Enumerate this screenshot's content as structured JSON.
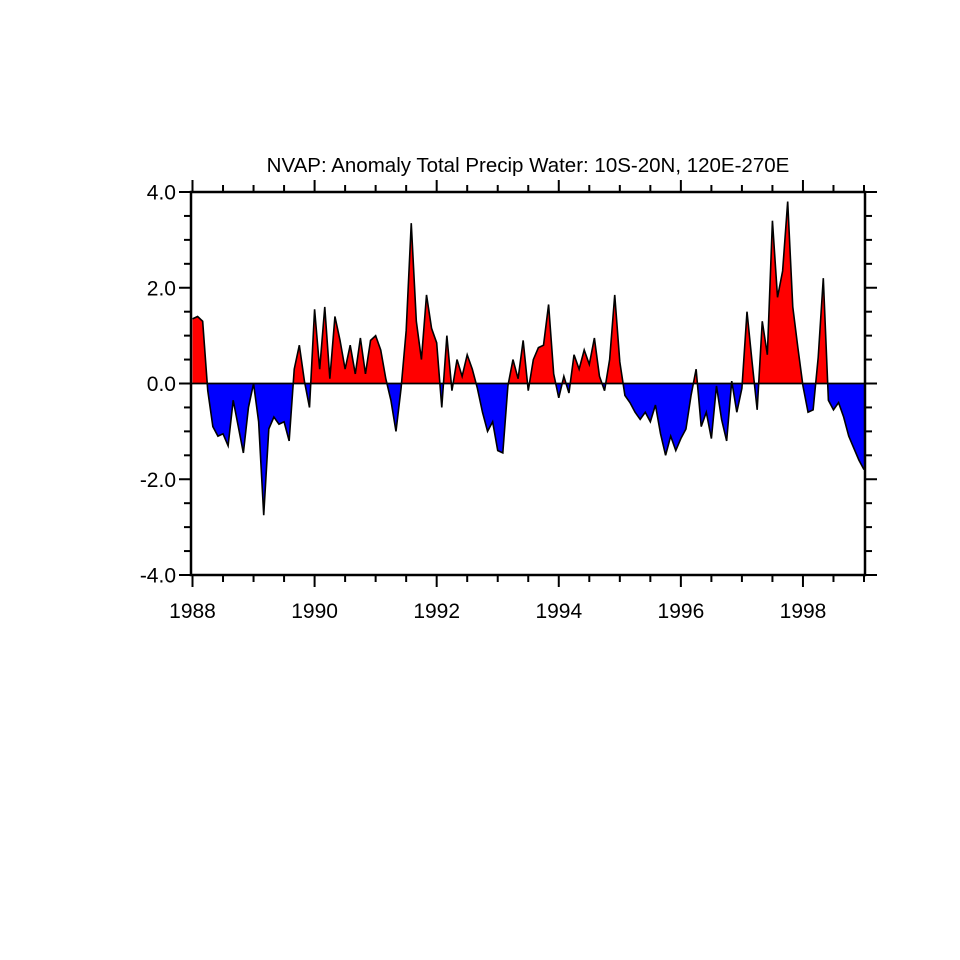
{
  "title": "NVAP: Anomaly Total Precip Water: 10S-20N, 120E-270E",
  "chart_data": {
    "type": "area",
    "title": "NVAP: Anomaly Total Precip Water: 10S-20N, 120E-270E",
    "xlabel": "",
    "ylabel": "",
    "series_name": "Total precipitable water anomaly",
    "region": "10S-20N, 120E-270E",
    "frequency": "monthly",
    "start": "1988-01",
    "end": "1999-01",
    "values": [
      1.35,
      1.4,
      1.3,
      -0.15,
      -0.9,
      -1.1,
      -1.05,
      -1.3,
      -0.35,
      -0.9,
      -1.45,
      -0.5,
      0.0,
      -0.8,
      -2.75,
      -0.95,
      -0.7,
      -0.85,
      -0.8,
      -1.2,
      0.3,
      0.8,
      0.05,
      -0.5,
      1.55,
      0.3,
      1.6,
      0.1,
      1.4,
      0.9,
      0.3,
      0.8,
      0.2,
      0.95,
      0.2,
      0.9,
      1.0,
      0.7,
      0.1,
      -0.35,
      -1.0,
      -0.1,
      1.1,
      3.35,
      1.3,
      0.5,
      1.85,
      1.15,
      0.85,
      -0.5,
      1.0,
      -0.15,
      0.5,
      0.15,
      0.6,
      0.3,
      -0.1,
      -0.6,
      -1.0,
      -0.8,
      -1.4,
      -1.45,
      -0.05,
      0.5,
      0.1,
      0.9,
      -0.15,
      0.5,
      0.75,
      0.8,
      1.65,
      0.2,
      -0.3,
      0.15,
      -0.2,
      0.6,
      0.3,
      0.7,
      0.4,
      0.95,
      0.15,
      -0.15,
      0.5,
      1.85,
      0.45,
      -0.25,
      -0.4,
      -0.6,
      -0.75,
      -0.6,
      -0.8,
      -0.45,
      -1.05,
      -1.5,
      -1.1,
      -1.4,
      -1.15,
      -0.95,
      -0.25,
      0.3,
      -0.9,
      -0.6,
      -1.15,
      -0.05,
      -0.75,
      -1.2,
      0.05,
      -0.6,
      -0.1,
      1.5,
      0.45,
      -0.55,
      1.3,
      0.6,
      3.4,
      1.8,
      2.35,
      3.8,
      1.6,
      0.75,
      -0.05,
      -0.6,
      -0.55,
      0.55,
      2.2,
      -0.35,
      -0.55,
      -0.4,
      -0.7,
      -1.1,
      -1.35,
      -1.6,
      -1.8
    ],
    "xlim": [
      1988.0,
      1999.05
    ],
    "ylim": [
      -4.0,
      4.0
    ],
    "x_major_ticks": [
      1988,
      1990,
      1992,
      1994,
      1996,
      1998
    ],
    "x_tick_labels": [
      "1988",
      "1990",
      "1992",
      "1994",
      "1996",
      "1998"
    ],
    "x_minor_tick_interval_years": 0.5,
    "y_major_ticks": [
      4.0,
      2.0,
      0.0,
      -2.0,
      -4.0
    ],
    "y_tick_labels": [
      "4.0",
      "2.0",
      "0.0",
      "-2.0",
      "-4.0"
    ],
    "y_minor_tick_interval": 0.5,
    "grid": "off",
    "legend": "none",
    "positive_color": "#FF0000",
    "negative_color": "#0000FF",
    "line_color": "#000000",
    "frame_color": "#000000",
    "background_color": "#FFFFFF"
  }
}
